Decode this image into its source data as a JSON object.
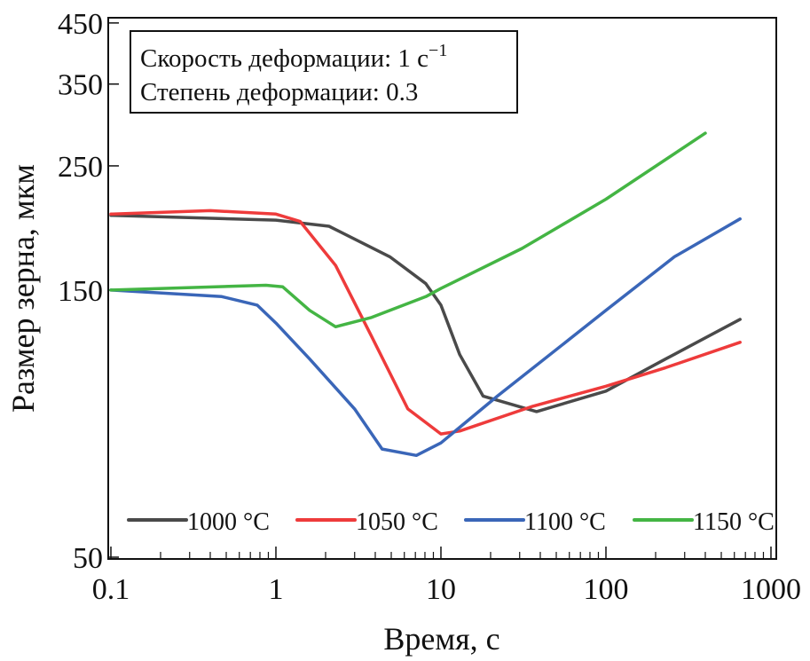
{
  "chart_data": {
    "type": "line",
    "xlabel": "Время, с",
    "ylabel": "Размер зерна, мкм",
    "xscale": "log",
    "yscale": "log",
    "xlim": [
      0.1,
      1000
    ],
    "ylim": [
      50,
      450
    ],
    "xticks": [
      "0.1",
      "1",
      "10",
      "100",
      "1000"
    ],
    "xtick_values": [
      0.1,
      1,
      10,
      100,
      1000
    ],
    "yticks": [
      "50",
      "150",
      "250",
      "350",
      "450"
    ],
    "ytick_values": [
      50,
      150,
      250,
      350,
      450
    ],
    "annotation": [
      "Скорость деформации: 1 с",
      "Степень деформации: 0.3"
    ],
    "annotation_superscript": "−1",
    "legend_position": "bottom",
    "series": [
      {
        "name": "1000 °C",
        "color": "#4a4a4a",
        "x": [
          0.1,
          1,
          2.1,
          4.9,
          8.1,
          10,
          13,
          18,
          38,
          100,
          230,
          650
        ],
        "y": [
          204,
          200,
          195,
          172,
          154,
          141,
          115,
          97,
          91,
          99,
          113,
          133
        ]
      },
      {
        "name": "1050 °C",
        "color": "#ee3b3b",
        "x": [
          0.1,
          0.4,
          1,
          1.4,
          2.3,
          3.8,
          6.3,
          10,
          13,
          36,
          100,
          230,
          650
        ],
        "y": [
          205,
          208,
          205,
          199,
          166,
          124,
          92,
          83,
          84,
          93,
          101,
          109,
          121
        ]
      },
      {
        "name": "1100 °C",
        "color": "#3a66b8",
        "x": [
          0.1,
          0.47,
          0.77,
          1,
          1.6,
          3,
          4.4,
          7.1,
          10,
          22,
          100,
          260,
          650
        ],
        "y": [
          150,
          146,
          141,
          131,
          113,
          92,
          78,
          76,
          80,
          97,
          138,
          172,
          201
        ]
      },
      {
        "name": "1150 °C",
        "color": "#44b544",
        "x": [
          0.1,
          0.87,
          1.1,
          1.6,
          2.3,
          3.8,
          8.1,
          10,
          31,
          100,
          400
        ],
        "y": [
          150,
          153,
          152,
          138,
          129,
          134,
          146,
          151,
          178,
          218,
          286
        ]
      }
    ]
  }
}
